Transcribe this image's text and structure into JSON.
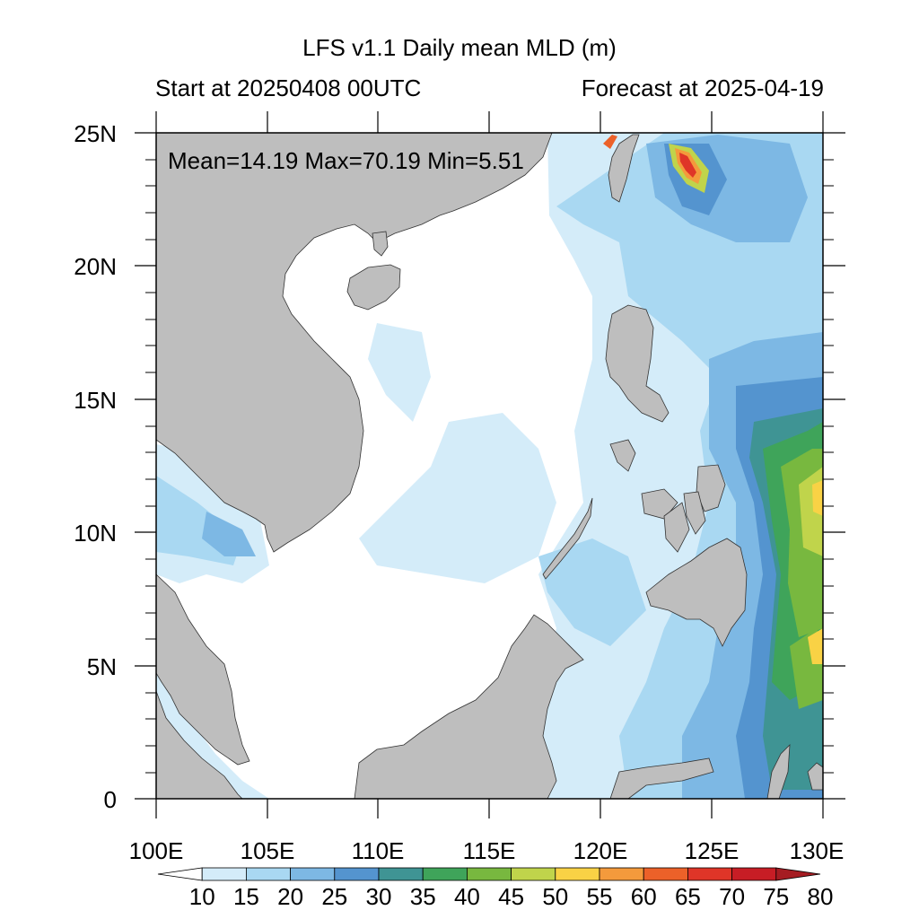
{
  "title": "LFS v1.1 Daily mean MLD (m)",
  "subtitle_left": "Start at 20250408 00UTC",
  "subtitle_right": "Forecast at 2025-04-19",
  "stats_text": "Mean=14.19  Max=70.19  Min=5.51",
  "chart_data": {
    "type": "map-contour",
    "variable": "Daily mean MLD (m)",
    "stats": {
      "mean": 14.19,
      "max": 70.19,
      "min": 5.51
    },
    "lon_range": [
      100,
      130
    ],
    "lat_range": [
      0,
      25
    ],
    "x_ticks": [
      "100E",
      "105E",
      "110E",
      "115E",
      "120E",
      "125E",
      "130E"
    ],
    "y_ticks": [
      "0",
      "5N",
      "10N",
      "15N",
      "20N",
      "25N"
    ],
    "colorbar": {
      "levels": [
        10,
        15,
        20,
        25,
        30,
        35,
        40,
        45,
        50,
        55,
        60,
        65,
        70,
        75,
        80
      ],
      "colors": [
        "#ffffff",
        "#d4ecf9",
        "#a9d8f2",
        "#7db8e4",
        "#5494cf",
        "#3f9494",
        "#3fa45a",
        "#78b83f",
        "#c0d44b",
        "#f9d245",
        "#f49a3c",
        "#ec6129",
        "#df3528",
        "#c71d25",
        "#a51c22"
      ]
    },
    "land_color": "#bebebe"
  }
}
